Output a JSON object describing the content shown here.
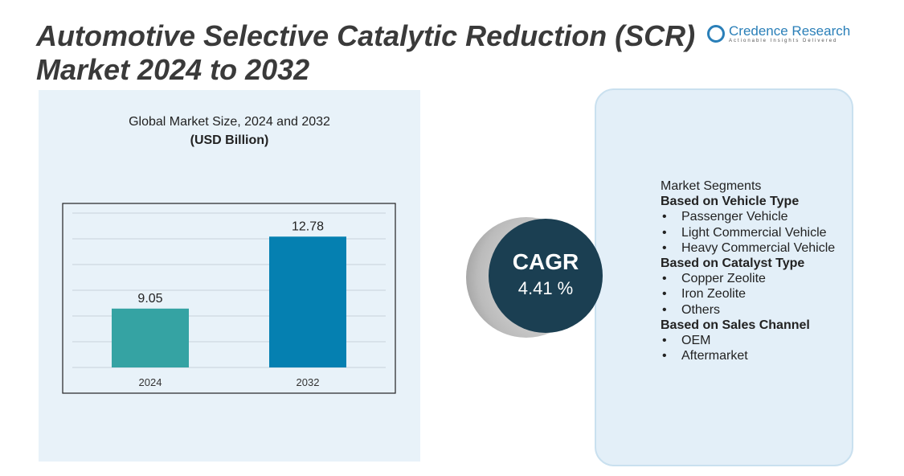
{
  "title": "Automotive Selective Catalytic Reduction (SCR) Market 2024 to 2032",
  "logo": {
    "name": "Credence Research",
    "tagline": "Actionable Insights Delivered"
  },
  "chart_data": {
    "type": "bar",
    "title": "Global Market Size, 2024 and 2032",
    "subtitle": "(USD Billion)",
    "categories": [
      "2024",
      "2032"
    ],
    "values": [
      9.05,
      12.78
    ],
    "value_labels": [
      "9.05",
      "12.78"
    ],
    "colors": [
      "#35a3a3",
      "#0580b1"
    ],
    "ylim": [
      6,
      14
    ],
    "grid": true
  },
  "cagr": {
    "label": "CAGR",
    "value": "4.41 %"
  },
  "segments": {
    "heading": "Market Segments",
    "groups": [
      {
        "title": "Based on Vehicle Type",
        "items": [
          "Passenger Vehicle",
          "Light Commercial Vehicle",
          "Heavy Commercial Vehicle"
        ]
      },
      {
        "title": "Based on Catalyst Type",
        "items": [
          "Copper Zeolite",
          "Iron Zeolite",
          "Others"
        ]
      },
      {
        "title": "Based on Sales Channel",
        "items": [
          "OEM",
          "Aftermarket"
        ]
      }
    ]
  }
}
